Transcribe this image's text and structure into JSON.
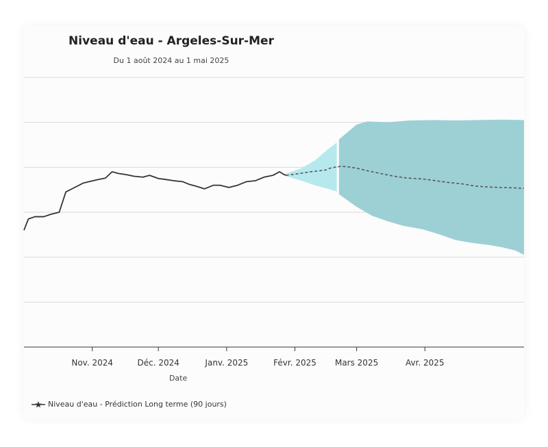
{
  "chart_data": {
    "type": "line",
    "title": "Niveau d'eau - Argeles-Sur-Mer",
    "subtitle": "Du 1 août 2024 au 1 mai 2025",
    "xlabel": "Date",
    "ylabel": "",
    "y_ticks_labeled": false,
    "grid": true,
    "legend_position": "bottom-left",
    "x_ticks": [
      {
        "label": "Nov. 2024",
        "date": "2024-11-01"
      },
      {
        "label": "Déc. 2024",
        "date": "2024-12-01"
      },
      {
        "label": "Janv. 2025",
        "date": "2025-01-01"
      },
      {
        "label": "Févr. 2025",
        "date": "2025-02-01"
      },
      {
        "label": "Mars 2025",
        "date": "2025-03-01"
      },
      {
        "label": "Avr. 2025",
        "date": "2025-04-01"
      }
    ],
    "series": [
      {
        "role": "observed",
        "style": "solid",
        "points": [
          [
            "2024-10-01",
            2.6
          ],
          [
            "2024-10-03",
            2.85
          ],
          [
            "2024-10-06",
            2.9
          ],
          [
            "2024-10-10",
            2.9
          ],
          [
            "2024-10-13",
            2.95
          ],
          [
            "2024-10-17",
            3.0
          ],
          [
            "2024-10-20",
            3.45
          ],
          [
            "2024-10-24",
            3.55
          ],
          [
            "2024-10-28",
            3.65
          ],
          [
            "2024-11-03",
            3.72
          ],
          [
            "2024-11-07",
            3.76
          ],
          [
            "2024-11-10",
            3.9
          ],
          [
            "2024-11-13",
            3.86
          ],
          [
            "2024-11-16",
            3.84
          ],
          [
            "2024-11-20",
            3.8
          ],
          [
            "2024-11-24",
            3.78
          ],
          [
            "2024-11-27",
            3.82
          ],
          [
            "2024-12-01",
            3.75
          ],
          [
            "2024-12-04",
            3.73
          ],
          [
            "2024-12-08",
            3.7
          ],
          [
            "2024-12-12",
            3.68
          ],
          [
            "2024-12-15",
            3.62
          ],
          [
            "2024-12-18",
            3.58
          ],
          [
            "2024-12-22",
            3.52
          ],
          [
            "2024-12-26",
            3.6
          ],
          [
            "2024-12-29",
            3.6
          ],
          [
            "2025-01-02",
            3.55
          ],
          [
            "2025-01-06",
            3.6
          ],
          [
            "2025-01-10",
            3.68
          ],
          [
            "2025-01-14",
            3.7
          ],
          [
            "2025-01-18",
            3.78
          ],
          [
            "2025-01-22",
            3.82
          ],
          [
            "2025-01-25",
            3.9
          ],
          [
            "2025-01-27",
            3.84
          ],
          [
            "2025-01-28",
            3.82
          ]
        ]
      },
      {
        "name": "Niveau d'eau - Prédiction Long terme (90 jours)",
        "role": "forecast",
        "style": "dashed",
        "points": [
          [
            "2025-01-28",
            3.82
          ],
          [
            "2025-02-03",
            3.86
          ],
          [
            "2025-02-08",
            3.9
          ],
          [
            "2025-02-12",
            3.92
          ],
          [
            "2025-02-15",
            3.94
          ],
          [
            "2025-02-17",
            3.98
          ],
          [
            "2025-02-20",
            4.01
          ],
          [
            "2025-02-22",
            4.02
          ],
          [
            "2025-02-25",
            4.01
          ],
          [
            "2025-03-01",
            3.98
          ],
          [
            "2025-03-06",
            3.92
          ],
          [
            "2025-03-12",
            3.86
          ],
          [
            "2025-03-18",
            3.8
          ],
          [
            "2025-03-24",
            3.76
          ],
          [
            "2025-03-31",
            3.74
          ],
          [
            "2025-04-06",
            3.7
          ],
          [
            "2025-04-12",
            3.66
          ],
          [
            "2025-04-18",
            3.63
          ],
          [
            "2025-04-24",
            3.58
          ],
          [
            "2025-04-30",
            3.56
          ],
          [
            "2025-05-06",
            3.55
          ],
          [
            "2025-05-12",
            3.54
          ],
          [
            "2025-05-16",
            3.53
          ]
        ]
      }
    ],
    "bands": [
      {
        "role": "short-horizon interval",
        "color": "#b6e9ee",
        "lower": [
          [
            "2025-01-28",
            3.8
          ],
          [
            "2025-02-04",
            3.7
          ],
          [
            "2025-02-10",
            3.6
          ],
          [
            "2025-02-16",
            3.52
          ],
          [
            "2025-02-20",
            3.46
          ]
        ],
        "upper": [
          [
            "2025-01-28",
            3.86
          ],
          [
            "2025-02-04",
            3.98
          ],
          [
            "2025-02-10",
            4.15
          ],
          [
            "2025-02-16",
            4.4
          ],
          [
            "2025-02-20",
            4.55
          ]
        ]
      },
      {
        "role": "long-horizon interval",
        "color": "#9dd0d5",
        "lower": [
          [
            "2025-02-21",
            3.4
          ],
          [
            "2025-03-01",
            3.12
          ],
          [
            "2025-03-08",
            2.92
          ],
          [
            "2025-03-15",
            2.8
          ],
          [
            "2025-03-22",
            2.7
          ],
          [
            "2025-03-31",
            2.62
          ],
          [
            "2025-04-08",
            2.5
          ],
          [
            "2025-04-15",
            2.38
          ],
          [
            "2025-04-22",
            2.32
          ],
          [
            "2025-04-30",
            2.27
          ],
          [
            "2025-05-06",
            2.22
          ],
          [
            "2025-05-12",
            2.15
          ],
          [
            "2025-05-16",
            2.05
          ]
        ],
        "upper": [
          [
            "2025-02-21",
            4.62
          ],
          [
            "2025-03-01",
            4.95
          ],
          [
            "2025-03-06",
            5.02
          ],
          [
            "2025-03-15",
            5.0
          ],
          [
            "2025-03-25",
            5.04
          ],
          [
            "2025-04-05",
            5.05
          ],
          [
            "2025-04-15",
            5.04
          ],
          [
            "2025-04-25",
            5.05
          ],
          [
            "2025-05-06",
            5.06
          ],
          [
            "2025-05-16",
            5.05
          ]
        ]
      }
    ],
    "x_range": [
      "2024-10-01",
      "2025-05-16"
    ],
    "ylim": [
      0,
      6
    ],
    "y_gridlines": [
      1,
      2,
      3,
      4,
      5,
      6
    ]
  },
  "colors": {
    "observed_line": "#333333",
    "forecast_line": "#555555",
    "band_short": "#b6e9ee",
    "band_long": "#9dd0d5",
    "gridline": "#d9d9d9",
    "axis": "#333333"
  }
}
